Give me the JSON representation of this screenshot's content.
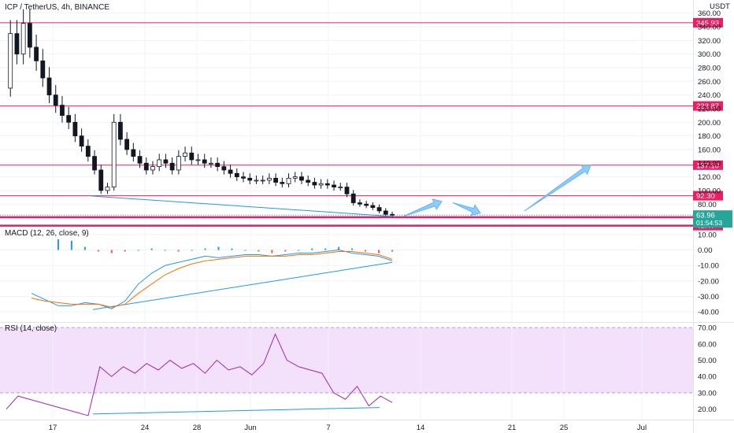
{
  "header": {
    "symbol_title": "ICP / TetherUS, 4h, BINANCE",
    "currency_label": "USDT"
  },
  "colors": {
    "hline": "#e91e63",
    "trendline": "#2196f3",
    "candle": "#131722",
    "macd_line": "#2196f3",
    "signal_line": "#ff6d00",
    "hist_pos": "#2196f3",
    "hist_neg": "#ff5252",
    "rsi_line": "#9c27b0",
    "rsi_band": "#f3e0fb",
    "price_badge": "#26a69a",
    "arrow": "#90caf9"
  },
  "chart_data": [
    {
      "type": "candlestick",
      "title": "ICP / TetherUS, 4h, BINANCE",
      "y_axis": {
        "ticks": [
          "360.00",
          "340.00",
          "320.00",
          "300.00",
          "280.00",
          "260.00",
          "240.00",
          "220.00",
          "200.00",
          "180.00",
          "160.00",
          "140.00",
          "120.00",
          "100.00",
          "80.00"
        ],
        "ylim": [
          48,
          370
        ]
      },
      "x_axis": {
        "ticks": [
          "17",
          "24",
          "28",
          "Jun",
          "7",
          "14",
          "21",
          "25",
          "Jul"
        ]
      },
      "horizontal_levels": [
        {
          "value": 345.93,
          "label": "345.93"
        },
        {
          "value": 223.87,
          "label": "223.87"
        },
        {
          "value": 137.1,
          "label": "137.10"
        },
        {
          "value": 92.3,
          "label": "92.30"
        },
        {
          "value": 60.86,
          "label": "60.86"
        },
        {
          "value": 48.47,
          "label": "48.47"
        }
      ],
      "current_price": {
        "value": 63.96,
        "label": "63.96",
        "countdown": "01:54:53"
      },
      "price_series": [
        250,
        330,
        300,
        345,
        310,
        290,
        265,
        240,
        225,
        210,
        200,
        180,
        165,
        150,
        130,
        100,
        105,
        200,
        175,
        160,
        150,
        140,
        130,
        135,
        145,
        140,
        130,
        150,
        155,
        145,
        145,
        140,
        140,
        135,
        130,
        125,
        120,
        118,
        115,
        115,
        115,
        118,
        112,
        110,
        118,
        120,
        115,
        112,
        108,
        110,
        108,
        105,
        105,
        95,
        82,
        80,
        78,
        75,
        70,
        65,
        64
      ],
      "projection_arrows": [
        {
          "from": [
            73,
            62
          ],
          "to": [
            80,
            84
          ]
        },
        {
          "from": [
            82,
            82
          ],
          "to": [
            87,
            67
          ]
        },
        {
          "from": [
            95,
            70
          ],
          "to": [
            107,
            137
          ]
        }
      ]
    },
    {
      "type": "line",
      "title": "MACD (12, 26, close, 9)",
      "y_axis": {
        "ticks": [
          "10.00",
          "0.00",
          "-10.00",
          "-20.00",
          "-30.00",
          "-40.00"
        ],
        "ylim": [
          -45,
          13
        ]
      },
      "series": [
        {
          "name": "MACD",
          "values": [
            -28,
            -32,
            -36,
            -36,
            -34,
            -35,
            -38,
            -33,
            -22,
            -15,
            -10,
            -8,
            -6,
            -4,
            -5,
            -4,
            -3,
            -3,
            -4,
            -3,
            -2,
            -2,
            -1,
            0,
            -2,
            -3,
            -4,
            -7
          ]
        },
        {
          "name": "Signal",
          "values": [
            -31,
            -33,
            -34,
            -35,
            -35,
            -35,
            -37,
            -35,
            -28,
            -22,
            -16,
            -12,
            -9,
            -7,
            -6,
            -5,
            -4,
            -4,
            -4,
            -4,
            -3,
            -3,
            -2,
            -1,
            -1,
            -2,
            -3,
            -6
          ]
        }
      ],
      "histogram": [
        3,
        8,
        7,
        6,
        2,
        -1,
        -2,
        -1,
        0,
        1,
        0,
        -1,
        0,
        1,
        2,
        1,
        0,
        -1,
        -2,
        -1,
        0,
        1,
        1,
        2,
        1,
        -1,
        -2,
        -1
      ]
    },
    {
      "type": "line",
      "title": "RSI (14, close)",
      "y_axis": {
        "ticks": [
          "70.00",
          "60.00",
          "50.00",
          "40.00",
          "30.00",
          "20.00"
        ],
        "ylim": [
          15,
          72
        ]
      },
      "bands": [
        30,
        70
      ],
      "series": [
        {
          "name": "RSI",
          "values": [
            20,
            28,
            26,
            24,
            22,
            20,
            18,
            16,
            46,
            40,
            46,
            42,
            48,
            44,
            50,
            45,
            48,
            42,
            50,
            44,
            46,
            41,
            48,
            66,
            50,
            46,
            44,
            42,
            30,
            26,
            34,
            22,
            28,
            24
          ]
        }
      ]
    }
  ]
}
